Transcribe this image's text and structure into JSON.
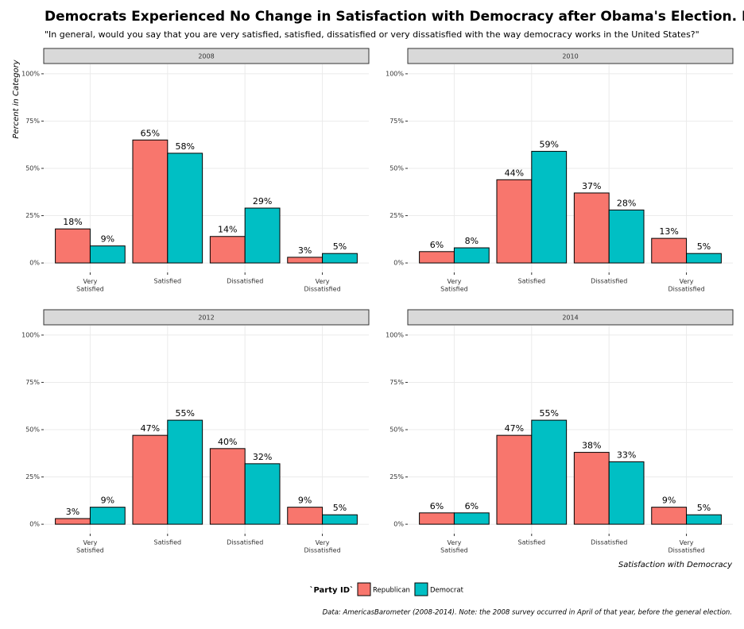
{
  "title": "Democrats Experienced No Change in Satisfaction with Democracy after Obama's Election. Republicans on the Ot",
  "subtitle": "\"In general, would you say that you are very satisfied, satisfied, dissatisfied or very dissatisfied with the way democracy works in the United States?\"",
  "x_label": "Satisfaction with Democracy",
  "y_label": "Percent in Category",
  "legend_title": "`Party ID`",
  "caption": "Data: AmericasBarometer (2008-2014). Note: the 2008 survey occurred in April of that year, before the general election.",
  "chart_data": [
    {
      "type": "bar",
      "title": "2008",
      "categories": [
        "Very Satisfied",
        "Satisfied",
        "Dissatisfied",
        "Very Dissatisfied"
      ],
      "series": [
        {
          "name": "Republican",
          "color": "#F8766D",
          "values": [
            18,
            65,
            14,
            3
          ],
          "value_labels": [
            "18%",
            "65%",
            "14%",
            "3%"
          ]
        },
        {
          "name": "Democrat",
          "color": "#00BFC4",
          "values": [
            9,
            58,
            29,
            5
          ],
          "value_labels": [
            "9%",
            "58%",
            "29%",
            "5%"
          ]
        }
      ],
      "ylim": [
        -5,
        105
      ],
      "yticks": [
        {
          "value": 0,
          "label": "0%"
        },
        {
          "value": 25,
          "label": "25%"
        },
        {
          "value": 50,
          "label": "50%"
        },
        {
          "value": 75,
          "label": "75%"
        },
        {
          "value": 100,
          "label": "100%"
        }
      ],
      "grid": true
    },
    {
      "type": "bar",
      "title": "2010",
      "categories": [
        "Very Satisfied",
        "Satisfied",
        "Dissatisfied",
        "Very Dissatisfied"
      ],
      "series": [
        {
          "name": "Republican",
          "color": "#F8766D",
          "values": [
            6,
            44,
            37,
            13
          ],
          "value_labels": [
            "6%",
            "44%",
            "37%",
            "13%"
          ]
        },
        {
          "name": "Democrat",
          "color": "#00BFC4",
          "values": [
            8,
            59,
            28,
            5
          ],
          "value_labels": [
            "8%",
            "59%",
            "28%",
            "5%"
          ]
        }
      ],
      "ylim": [
        -5,
        105
      ],
      "yticks": [
        {
          "value": 0,
          "label": "0%"
        },
        {
          "value": 25,
          "label": "25%"
        },
        {
          "value": 50,
          "label": "50%"
        },
        {
          "value": 75,
          "label": "75%"
        },
        {
          "value": 100,
          "label": "100%"
        }
      ],
      "grid": true
    },
    {
      "type": "bar",
      "title": "2012",
      "categories": [
        "Very Satisfied",
        "Satisfied",
        "Dissatisfied",
        "Very Dissatisfied"
      ],
      "series": [
        {
          "name": "Republican",
          "color": "#F8766D",
          "values": [
            3,
            47,
            40,
            9
          ],
          "value_labels": [
            "3%",
            "47%",
            "40%",
            "9%"
          ]
        },
        {
          "name": "Democrat",
          "color": "#00BFC4",
          "values": [
            9,
            55,
            32,
            5
          ],
          "value_labels": [
            "9%",
            "55%",
            "32%",
            "5%"
          ]
        }
      ],
      "ylim": [
        -5,
        105
      ],
      "yticks": [
        {
          "value": 0,
          "label": "0%"
        },
        {
          "value": 25,
          "label": "25%"
        },
        {
          "value": 50,
          "label": "50%"
        },
        {
          "value": 75,
          "label": "75%"
        },
        {
          "value": 100,
          "label": "100%"
        }
      ],
      "grid": true
    },
    {
      "type": "bar",
      "title": "2014",
      "categories": [
        "Very Satisfied",
        "Satisfied",
        "Dissatisfied",
        "Very Dissatisfied"
      ],
      "series": [
        {
          "name": "Republican",
          "color": "#F8766D",
          "values": [
            6,
            47,
            38,
            9
          ],
          "value_labels": [
            "6%",
            "47%",
            "38%",
            "9%"
          ]
        },
        {
          "name": "Democrat",
          "color": "#00BFC4",
          "values": [
            6,
            55,
            33,
            5
          ],
          "value_labels": [
            "6%",
            "55%",
            "33%",
            "5%"
          ]
        }
      ],
      "ylim": [
        -5,
        105
      ],
      "yticks": [
        {
          "value": 0,
          "label": "0%"
        },
        {
          "value": 25,
          "label": "25%"
        },
        {
          "value": 50,
          "label": "50%"
        },
        {
          "value": 75,
          "label": "75%"
        },
        {
          "value": 100,
          "label": "100%"
        }
      ],
      "grid": true
    }
  ]
}
